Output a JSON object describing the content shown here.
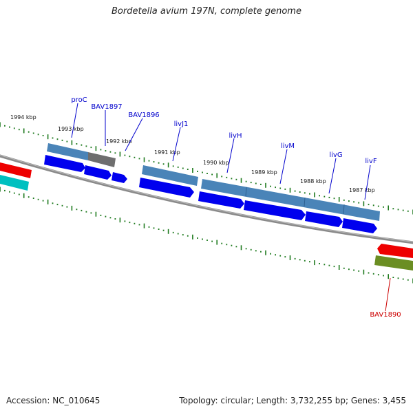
{
  "title": "Bordetella avium 197N, complete genome",
  "footer": {
    "accession": "Accession: NC_010645",
    "stats": "Topology: circular; Length: 3,732,255 bp; Genes: 3,455"
  },
  "colors": {
    "backbone": "#8a8a8a",
    "tick": "#1e7a1e",
    "forward_cds": "#0000ee",
    "forward_feature": "#4a84b8",
    "pseudo_feature": "#6e6e6e",
    "reverse_cds": "#ee0000",
    "reverse_feature": "#6b8e23",
    "offscreen_cds": "#00c0c0",
    "label_blue": "#0000cc",
    "label_red": "#cc0000"
  },
  "kbp_labels": [
    "1994 kbp",
    "1993 kbp",
    "1992 kbp",
    "1991 kbp",
    "1990 kbp",
    "1989 kbp",
    "1988 kbp",
    "1987 kbp"
  ],
  "gene_labels": [
    {
      "name": "proC",
      "color": "blue"
    },
    {
      "name": "BAV1897",
      "color": "blue"
    },
    {
      "name": "BAV1896",
      "color": "blue"
    },
    {
      "name": "livJ1",
      "color": "blue"
    },
    {
      "name": "livH",
      "color": "blue"
    },
    {
      "name": "livM",
      "color": "blue"
    },
    {
      "name": "livG",
      "color": "blue"
    },
    {
      "name": "livF",
      "color": "blue"
    },
    {
      "name": "BAV1890",
      "color": "red"
    }
  ]
}
